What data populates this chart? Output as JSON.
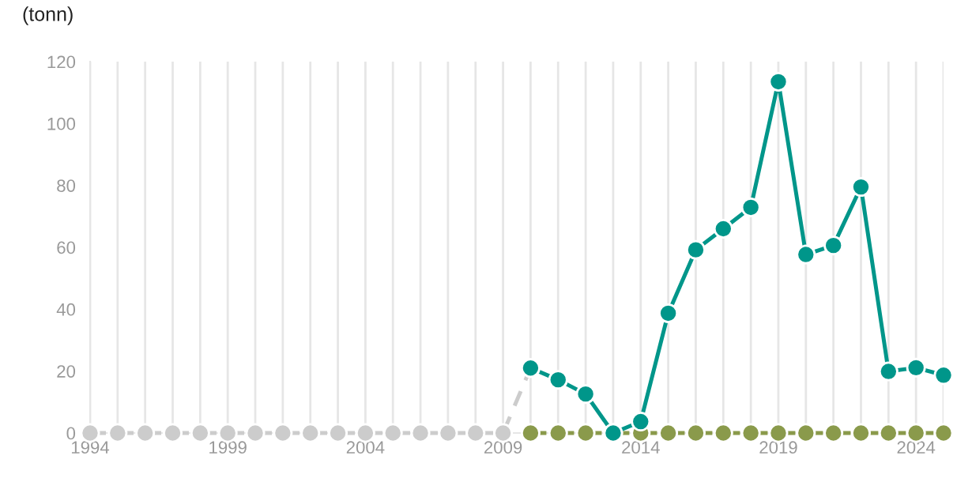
{
  "chart_data": {
    "type": "line",
    "ylabel": "(tonn)",
    "xlim": [
      1994,
      2025
    ],
    "ylim": [
      0,
      120
    ],
    "xticks": [
      1994,
      1999,
      2004,
      2009,
      2014,
      2019,
      2024
    ],
    "yticks": [
      0,
      20,
      40,
      60,
      80,
      100,
      120
    ],
    "grid": "x",
    "marker": "circle",
    "legend": false,
    "series": [
      {
        "color": "#cccccc",
        "line_style": "dashed",
        "x": [
          1994,
          1995,
          1996,
          1997,
          1998,
          1999,
          2000,
          2001,
          2002,
          2003,
          2004,
          2005,
          2006,
          2007,
          2008,
          2009,
          2010
        ],
        "values": [
          0,
          0,
          0,
          0,
          0,
          0,
          0,
          0,
          0,
          0,
          0,
          0,
          0,
          0,
          0,
          0,
          21
        ]
      },
      {
        "color": "#8a9a4b",
        "line_style": "dashed",
        "x": [
          2010,
          2011,
          2012,
          2013,
          2014,
          2015,
          2016,
          2017,
          2018,
          2019,
          2020,
          2021,
          2022,
          2023,
          2024,
          2025
        ],
        "values": [
          0,
          0,
          0,
          0,
          0,
          0,
          0,
          0,
          0,
          0,
          0,
          0,
          0,
          0,
          0,
          0
        ]
      },
      {
        "color": "#00968a",
        "line_style": "solid",
        "x": [
          2010,
          2011,
          2012,
          2013,
          2014,
          2015,
          2016,
          2017,
          2018,
          2019,
          2020,
          2021,
          2022,
          2023,
          2024,
          2025
        ],
        "values": [
          21,
          17.2,
          12.6,
          0,
          3.7,
          38.7,
          59.2,
          66,
          72.9,
          113.5,
          57.7,
          60.6,
          79.5,
          19.9,
          21.1,
          18.7
        ]
      }
    ]
  }
}
